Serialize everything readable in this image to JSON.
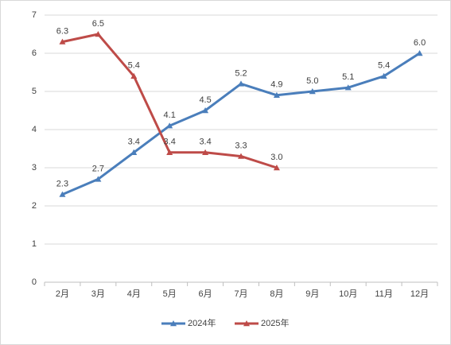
{
  "chart_data": {
    "type": "line",
    "categories": [
      "2月",
      "3月",
      "4月",
      "5月",
      "6月",
      "7月",
      "8月",
      "9月",
      "10月",
      "11月",
      "12月"
    ],
    "series": [
      {
        "name": "2024年",
        "color": "#4a7ebb",
        "values": [
          2.3,
          2.7,
          3.4,
          4.1,
          4.5,
          5.2,
          4.9,
          5.0,
          5.1,
          5.4,
          6.0
        ],
        "value_labels": [
          "2.3",
          "2.7",
          "3.4",
          "4.1",
          "4.5",
          "5.2",
          "4.9",
          "5.0",
          "5.1",
          "5.4",
          "6.0"
        ]
      },
      {
        "name": "2025年",
        "color": "#be4b48",
        "values": [
          6.3,
          6.5,
          5.4,
          3.4,
          3.4,
          3.3,
          3.0,
          null,
          null,
          null,
          null
        ],
        "value_labels": [
          "6.3",
          "6.5",
          "5.4",
          "3.4",
          "3.4",
          "3.3",
          "3.0",
          null,
          null,
          null,
          null
        ]
      }
    ],
    "ylim": [
      0,
      7
    ],
    "yticks": [
      0,
      1,
      2,
      3,
      4,
      5,
      6,
      7
    ],
    "grid": true,
    "legend": "bottom"
  }
}
